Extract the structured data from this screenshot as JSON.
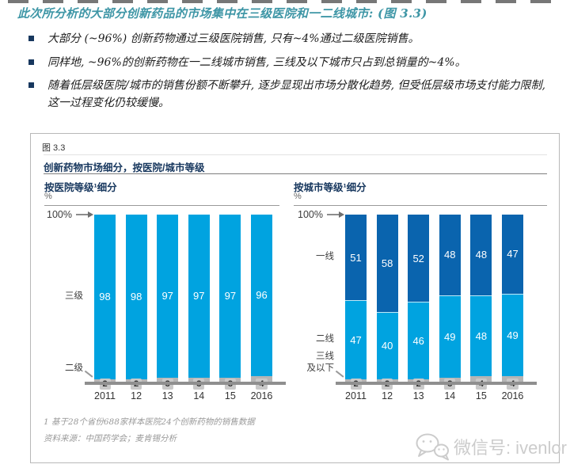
{
  "title": "此次所分析的大部分创新药品的市场集中在三级医院和一二线城市: (图 3.3)",
  "bullets": [
    "大部分 (~96%) 创新药物通过三级医院销售, 只有~4%通过二级医院销售。",
    "同样地, ~96%的创新药物在一二线城市销售, 三线及以下城市只占到总销量的~4%。",
    "随着低层级医院/城市的销售份额不断攀升, 逐步显现出市场分散化趋势, 但受低层级市场支付能力限制, 这一过程变化仍较缓慢。"
  ],
  "figure": {
    "label": "图 3.3",
    "title": "创新药物市场细分，按医院/城市等级",
    "footnote": "1 基于28个省份688家样本医院24个创新药物的销售数据",
    "source": "资料来源：中国药学会；麦肯锡分析"
  },
  "chart_data": [
    {
      "type": "bar",
      "stacked": true,
      "title": "按医院等级¹细分",
      "unit": "%",
      "axis_annotation": "100%",
      "ylim": [
        0,
        100
      ],
      "grid": false,
      "legend_position": "left-of-bars",
      "categories": [
        "2011",
        "12",
        "13",
        "14",
        "15",
        "2016"
      ],
      "series": [
        {
          "name": "三级",
          "color": "#00a3e0",
          "values": [
            98,
            98,
            97,
            97,
            97,
            96
          ]
        },
        {
          "name": "二级",
          "color": "#b5b5b5",
          "values": [
            2,
            2,
            3,
            3,
            3,
            4
          ]
        }
      ]
    },
    {
      "type": "bar",
      "stacked": true,
      "title": "按城市等级¹细分",
      "unit": "%",
      "axis_annotation": "100%",
      "ylim": [
        0,
        100
      ],
      "grid": false,
      "legend_position": "left-of-bars",
      "categories": [
        "2011",
        "12",
        "13",
        "14",
        "15",
        "2016"
      ],
      "series": [
        {
          "name": "一线",
          "color": "#0a64ae",
          "values": [
            51,
            58,
            52,
            48,
            48,
            47
          ]
        },
        {
          "name": "二线",
          "color": "#00a3e0",
          "values": [
            47,
            40,
            46,
            49,
            48,
            49
          ]
        },
        {
          "name": "三线\n及以下",
          "color": "#b5b5b5",
          "values": [
            2,
            2,
            2,
            3,
            4,
            4
          ]
        }
      ]
    }
  ],
  "watermark": {
    "icon": "wechat-icon",
    "text": "微信号: ivenlor"
  },
  "colors": {
    "accent_cyan": "#00a3e0",
    "accent_blue": "#0a64ae",
    "gray_segment": "#b5b5b5",
    "navy_text": "#17375e",
    "title_teal": "#3e96a6",
    "axis_gray": "#8f8f8f",
    "chip_bg": "#c9c9c9",
    "watermark_gray": "#cccccc"
  }
}
